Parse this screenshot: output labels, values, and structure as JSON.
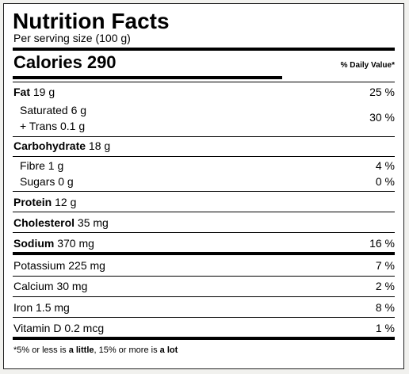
{
  "label": {
    "title": "Nutrition Facts",
    "serving": "Per serving size (100 g)",
    "calories_label": "Calories",
    "calories_value": "290",
    "dv_header": "% Daily Value*"
  },
  "nutrients": {
    "fat": {
      "name": "Fat",
      "amount": "19 g",
      "pct": "25 %"
    },
    "saturated": {
      "name": "Saturated 6 g"
    },
    "trans": {
      "name": "+ Trans 0.1 g"
    },
    "sat_trans_pct": "30 %",
    "carbohydrate": {
      "name": "Carbohydrate",
      "amount": "18 g"
    },
    "fibre": {
      "name": "Fibre 1 g",
      "pct": "4 %"
    },
    "sugars": {
      "name": "Sugars 0 g",
      "pct": "0 %"
    },
    "protein": {
      "name": "Protein",
      "amount": "12 g"
    },
    "cholesterol": {
      "name": "Cholesterol",
      "amount": "35 mg"
    },
    "sodium": {
      "name": "Sodium",
      "amount": "370 mg",
      "pct": "16 %"
    },
    "potassium": {
      "name": "Potassium 225 mg",
      "pct": "7 %"
    },
    "calcium": {
      "name": "Calcium 30 mg",
      "pct": "2 %"
    },
    "iron": {
      "name": "Iron 1.5 mg",
      "pct": "8 %"
    },
    "vitamin_d": {
      "name": "Vitamin D 0.2 mcg",
      "pct": "1 %"
    }
  },
  "footnote": {
    "part1": "*5% or less is ",
    "bold1": "a little",
    "part2": ", 15% or more is ",
    "bold2": "a lot"
  }
}
